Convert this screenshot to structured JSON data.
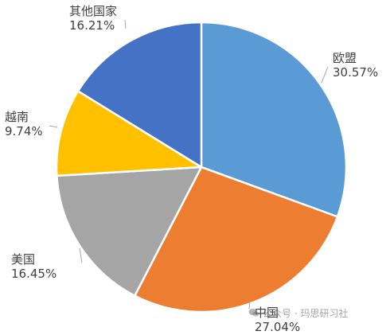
{
  "chart_data": {
    "type": "pie",
    "title": "",
    "categories": [
      "欧盟",
      "中国",
      "美国",
      "越南",
      "其他国家"
    ],
    "values": [
      30.57,
      27.04,
      16.45,
      9.74,
      16.21
    ],
    "value_labels": [
      "30.57%",
      "27.04%",
      "16.45%",
      "9.74%",
      "16.21%"
    ],
    "colors": [
      "#5b9bd5",
      "#ed7d31",
      "#a5a5a5",
      "#ffc000",
      "#4472c4"
    ],
    "start_angle_deg": 0,
    "direction": "clockwise",
    "legend": "none",
    "labels_position": "outside"
  },
  "watermark": {
    "icon": "wechat-icon",
    "text": "公众号 · 玛思研习社"
  }
}
